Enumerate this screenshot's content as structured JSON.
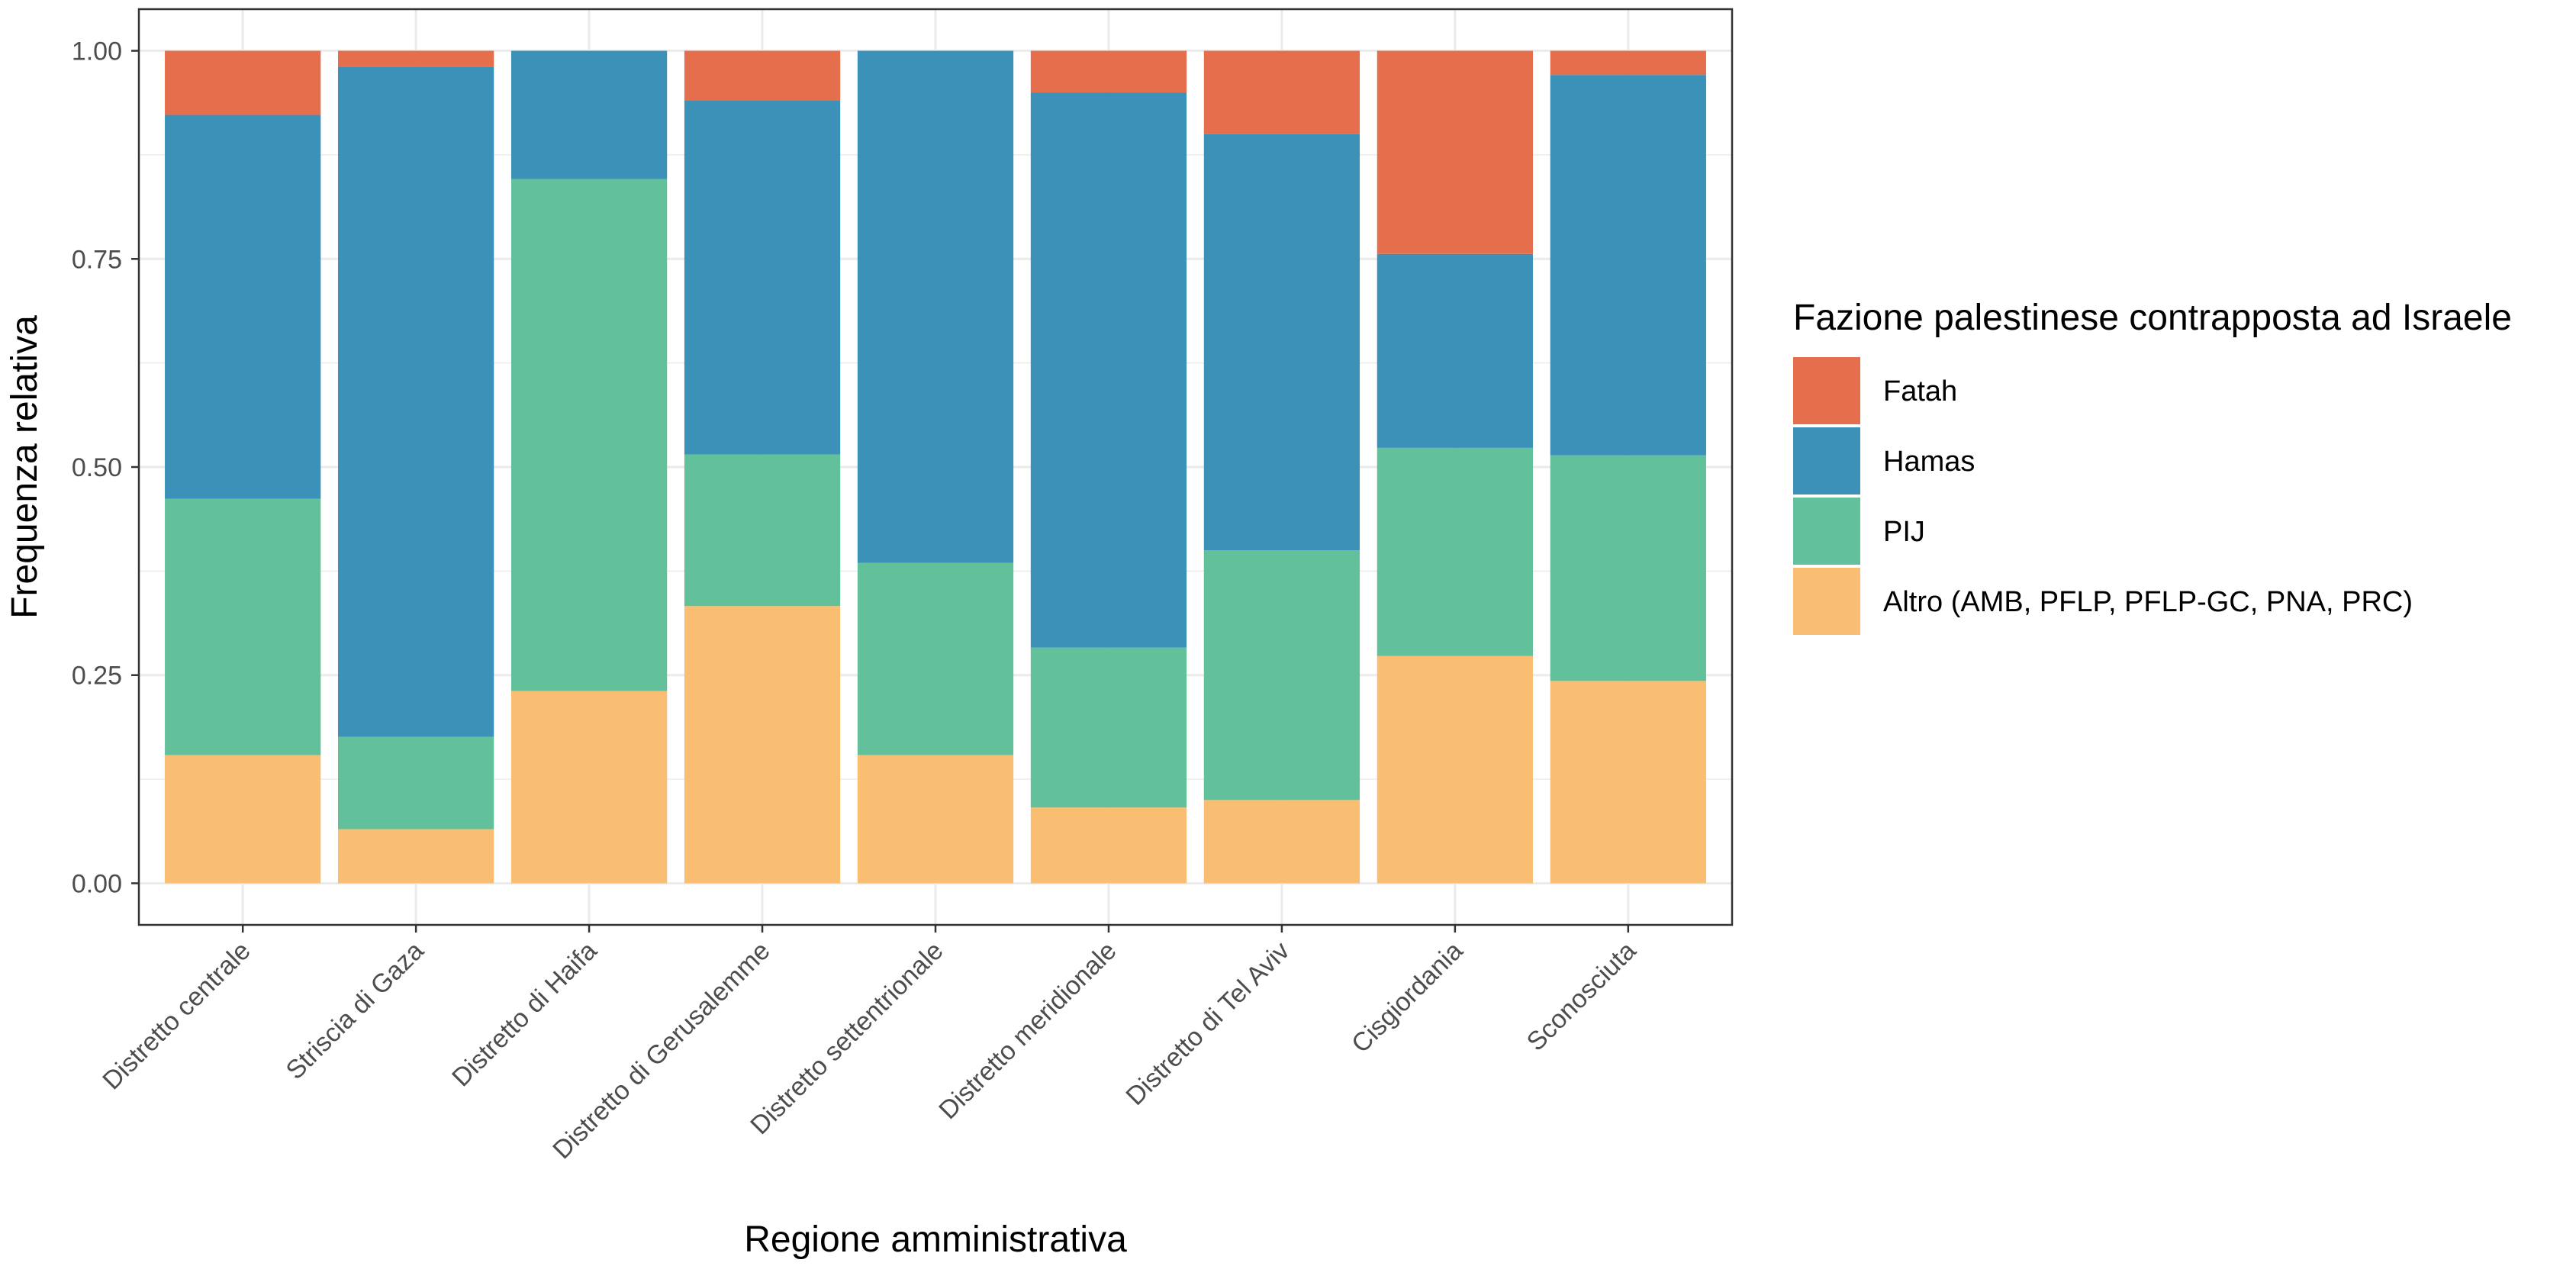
{
  "chart_data": {
    "type": "bar",
    "stacked": true,
    "normalized": true,
    "xlabel": "Regione amministrativa",
    "ylabel": "Frequenza relativa",
    "ylim": [
      0,
      1
    ],
    "yticks": [
      "0.00",
      "0.25",
      "0.50",
      "0.75",
      "1.00"
    ],
    "ytick_values": [
      0,
      0.25,
      0.5,
      0.75,
      1.0
    ],
    "grid": true,
    "legend_position": "right",
    "legend_title": "Fazione palestinese contrapposta ad Israele",
    "categories": [
      "Distretto centrale",
      "Striscia di Gaza",
      "Distretto di Haifa",
      "Distretto di Gerusalemme",
      "Distretto settentrionale",
      "Distretto meridionale",
      "Distretto di Tel Aviv",
      "Cisgiordania",
      "Sconosciuta"
    ],
    "series": [
      {
        "name": "Altro (AMB, PFLP, PFLP-GC, PNA, PRC)",
        "color": "#F9BE72",
        "values": [
          0.154,
          0.065,
          0.231,
          0.333,
          0.154,
          0.091,
          0.1,
          0.273,
          0.243
        ]
      },
      {
        "name": "PIJ",
        "color": "#62C09A",
        "values": [
          0.308,
          0.111,
          0.615,
          0.182,
          0.231,
          0.192,
          0.3,
          0.25,
          0.271
        ]
      },
      {
        "name": "Hamas",
        "color": "#3B91B7",
        "values": [
          0.461,
          0.805,
          0.154,
          0.425,
          0.615,
          0.667,
          0.5,
          0.233,
          0.457
        ]
      },
      {
        "name": "Fatah",
        "color": "#E56F4D",
        "values": [
          0.077,
          0.019,
          0.0,
          0.06,
          0.0,
          0.05,
          0.1,
          0.244,
          0.029
        ]
      }
    ],
    "legend_order": [
      "Fatah",
      "Hamas",
      "PIJ",
      "Altro (AMB, PFLP, PFLP-GC, PNA, PRC)"
    ]
  }
}
